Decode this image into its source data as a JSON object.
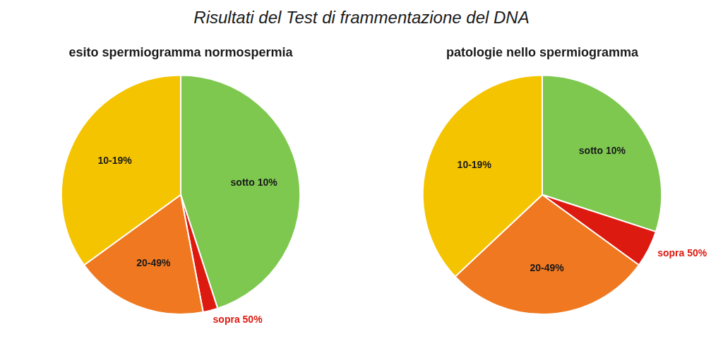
{
  "chart_data": {
    "type": "pie",
    "title": "Risultati del Test di frammentazione del DNA",
    "categories": [
      "sotto 10%",
      "sopra 50%",
      "20-49%",
      "10-19%"
    ],
    "colors": [
      "#7ec850",
      "#dd1a10",
      "#f07820",
      "#f5c400"
    ],
    "series": [
      {
        "name": "esito spermiogramma normospermia",
        "values": [
          45,
          2,
          18,
          35
        ]
      },
      {
        "name": "patologie nello spermiogramma",
        "values": [
          30,
          5,
          28,
          37
        ]
      }
    ]
  }
}
